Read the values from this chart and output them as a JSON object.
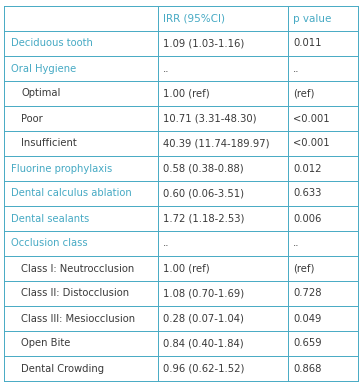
{
  "rows": [
    {
      "label": "Deciduous tooth",
      "irr": "1.09 (1.03-1.16)",
      "pval": "0.011",
      "style": "blue",
      "indent": 0
    },
    {
      "label": "Oral Hygiene",
      "irr": "..",
      "pval": "..",
      "style": "blue",
      "indent": 0
    },
    {
      "label": "Optimal",
      "irr": "1.00 (ref)",
      "pval": "(ref)",
      "style": "normal",
      "indent": 1
    },
    {
      "label": "Poor",
      "irr": "10.71 (3.31-48.30)",
      "pval": "<0.001",
      "style": "normal",
      "indent": 1
    },
    {
      "label": "Insufficient",
      "irr": "40.39 (11.74-189.97)",
      "pval": "<0.001",
      "style": "normal",
      "indent": 1
    },
    {
      "label": "Fluorine prophylaxis",
      "irr": "0.58 (0.38-0.88)",
      "pval": "0.012",
      "style": "blue",
      "indent": 0
    },
    {
      "label": "Dental calculus ablation",
      "irr": "0.60 (0.06-3.51)",
      "pval": "0.633",
      "style": "blue",
      "indent": 0
    },
    {
      "label": "Dental sealants",
      "irr": "1.72 (1.18-2.53)",
      "pval": "0.006",
      "style": "blue",
      "indent": 0
    },
    {
      "label": "Occlusion class",
      "irr": "..",
      "pval": "..",
      "style": "blue",
      "indent": 0
    },
    {
      "label": "Class I: Neutrocclusion",
      "irr": "1.00 (ref)",
      "pval": "(ref)",
      "style": "normal",
      "indent": 1
    },
    {
      "label": "Class II: Distocclusion",
      "irr": "1.08 (0.70-1.69)",
      "pval": "0.728",
      "style": "normal",
      "indent": 1
    },
    {
      "label": "Class III: Mesiocclusion",
      "irr": "0.28 (0.07-1.04)",
      "pval": "0.049",
      "style": "normal",
      "indent": 1
    },
    {
      "label": "Open Bite",
      "irr": "0.84 (0.40-1.84)",
      "pval": "0.659",
      "style": "normal",
      "indent": 1
    },
    {
      "label": "Dental Crowding",
      "irr": "0.96 (0.62-1.52)",
      "pval": "0.868",
      "style": "normal",
      "indent": 1
    }
  ],
  "header": [
    "",
    "IRR (95%CI)",
    "p value"
  ],
  "blue_color": "#47AAC4",
  "dark_color": "#3a3a3a",
  "border_color": "#47AAC4",
  "bg_color": "#FFFFFF",
  "font_size": 7.2,
  "header_font_size": 7.5,
  "indent_size": 12,
  "figsize": [
    3.62,
    3.85
  ],
  "dpi": 100
}
